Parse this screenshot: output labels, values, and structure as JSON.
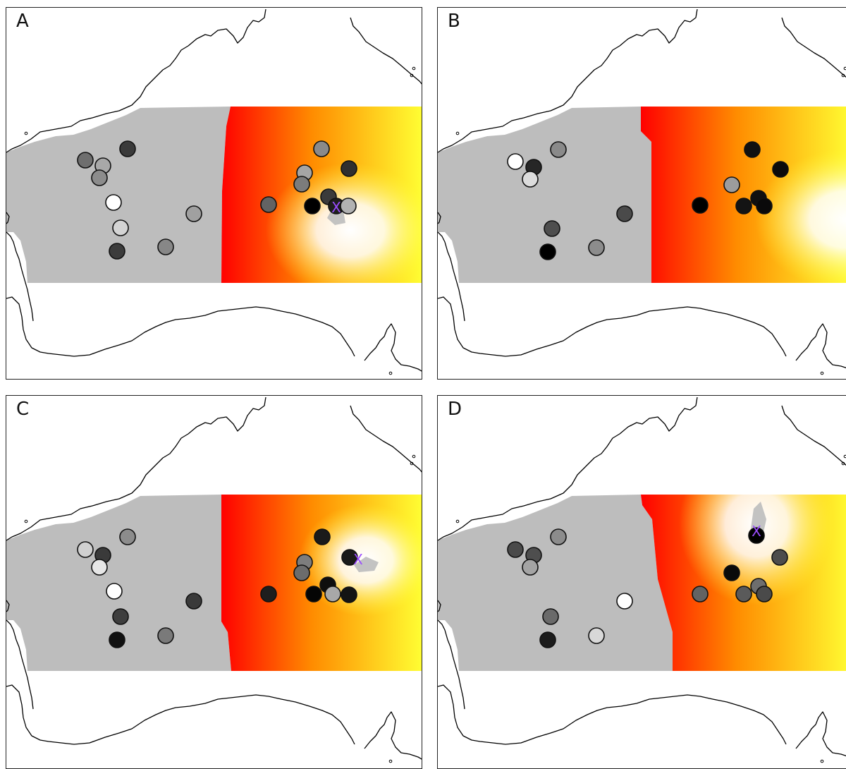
{
  "panels": [
    {
      "label": "A",
      "grey_points": [
        {
          "shade": "#6e6e6e"
        },
        {
          "shade": "#a8a8a8"
        },
        {
          "shade": "#8c8c8c"
        },
        {
          "shade": "#3a3a3a"
        },
        {
          "shade": "#ffffff"
        },
        {
          "shade": "#d4d4d4"
        },
        {
          "shade": "#3c3c3c"
        },
        {
          "shade": "#878787"
        },
        {
          "shade": "#a0a0a0"
        }
      ],
      "heat_points": [
        {
          "shade": "#8a8a8a"
        },
        {
          "shade": "#a5a5a5"
        },
        {
          "shade": "#7c7c7c"
        },
        {
          "shade": "#2f2f2f"
        },
        {
          "shade": "#636363"
        },
        {
          "shade": "#000000"
        },
        {
          "shade": "#3b3b3b"
        },
        {
          "shade": "#1e1e1e"
        },
        {
          "shade": "#b2b2b2"
        }
      ],
      "marker": "X"
    },
    {
      "label": "B",
      "grey_points": [
        {
          "shade": "#ffffff"
        },
        {
          "shade": "#262626"
        },
        {
          "shade": "#dcdcdc"
        },
        {
          "shade": "#8a8a8a"
        },
        {
          "shade": "#4e4e4e"
        },
        {
          "shade": "#000000"
        },
        {
          "shade": "#8c8c8c"
        },
        {
          "shade": "#4a4a4a"
        }
      ],
      "heat_points": [
        {
          "shade": "#111111"
        },
        {
          "shade": "#0b0b0b"
        },
        {
          "shade": "#9c9c9c"
        },
        {
          "shade": "#000000"
        },
        {
          "shade": "#141414"
        },
        {
          "shade": "#101010"
        },
        {
          "shade": "#0a0a0a"
        }
      ],
      "marker": ""
    },
    {
      "label": "C",
      "grey_points": [
        {
          "shade": "#d0d0d0"
        },
        {
          "shade": "#3a3a3a"
        },
        {
          "shade": "#e6e6e6"
        },
        {
          "shade": "#8c8c8c"
        },
        {
          "shade": "#ffffff"
        },
        {
          "shade": "#3e3e3e"
        },
        {
          "shade": "#111111"
        },
        {
          "shade": "#7a7a7a"
        },
        {
          "shade": "#3a3a3a"
        }
      ],
      "heat_points": [
        {
          "shade": "#1a1a1a"
        },
        {
          "shade": "#7d7d7d"
        },
        {
          "shade": "#6c6c6c"
        },
        {
          "shade": "#1a1a1a"
        },
        {
          "shade": "#1e1e1e"
        },
        {
          "shade": "#050505"
        },
        {
          "shade": "#0e0e0e"
        },
        {
          "shade": "#a8a8a8"
        },
        {
          "shade": "#141414"
        }
      ],
      "marker": "X"
    },
    {
      "label": "D",
      "grey_points": [
        {
          "shade": "#4a4a4a"
        },
        {
          "shade": "#4e4e4e"
        },
        {
          "shade": "#a4a4a4"
        },
        {
          "shade": "#8c8c8c"
        },
        {
          "shade": "#ffffff"
        },
        {
          "shade": "#6a6a6a"
        },
        {
          "shade": "#1c1c1c"
        },
        {
          "shade": "#d8d8d8"
        }
      ],
      "heat_points": [
        {
          "shade": "#000000"
        },
        {
          "shade": "#0a0a0a"
        },
        {
          "shade": "#4c4c4c"
        },
        {
          "shade": "#636363"
        },
        {
          "shade": "#5a5a5a"
        },
        {
          "shade": "#6e6e6e"
        },
        {
          "shade": "#4a4a4a"
        }
      ],
      "marker": "X"
    }
  ],
  "colors": {
    "grey_region": "#bdbdbd",
    "heat_low": "#ff0000",
    "heat_mid": "#ff8c00",
    "heat_high": "#ffff33",
    "heat_peak": "#ffffff",
    "marker": "#9b4dff",
    "coast": "#000000"
  }
}
